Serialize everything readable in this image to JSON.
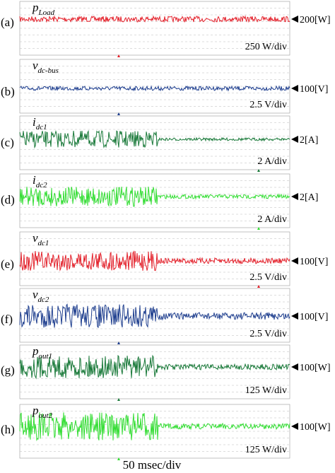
{
  "panels": [
    {
      "label": "(a)",
      "symbol": "p",
      "subscript": "Load",
      "level": "200[W]",
      "scale": "250 W/div",
      "color": "#e3202a"
    },
    {
      "label": "(b)",
      "symbol": "v",
      "subscript": "dc-bus",
      "level": "100[V]",
      "scale": "2.5 V/div",
      "color": "#1f3f8f"
    },
    {
      "label": "(c)",
      "symbol": "i",
      "subscript": "dc1",
      "level": "2[A]",
      "scale": "2 A/div",
      "color": "#1a7a3a"
    },
    {
      "label": "(d)",
      "symbol": "i",
      "subscript": "dc2",
      "level": "2[A]",
      "scale": "2 A/div",
      "color": "#33dd33"
    },
    {
      "label": "(e)",
      "symbol": "v",
      "subscript": "dc1",
      "level": "100[V]",
      "scale": "2.5 V/div",
      "color": "#e3202a"
    },
    {
      "label": "(f)",
      "symbol": "v",
      "subscript": "dc2",
      "level": "100[V]",
      "scale": "2.5 V/div",
      "color": "#1f3f8f"
    },
    {
      "label": "(g)",
      "symbol": "p",
      "subscript": "out1",
      "level": "100[W]",
      "scale": "125 W/div",
      "color": "#1a7a3a"
    },
    {
      "label": "(h)",
      "symbol": "p",
      "subscript": "out2",
      "level": "100[W]",
      "scale": "125 W/div",
      "color": "#33dd33"
    }
  ],
  "time_scale": "50 msec/div"
}
